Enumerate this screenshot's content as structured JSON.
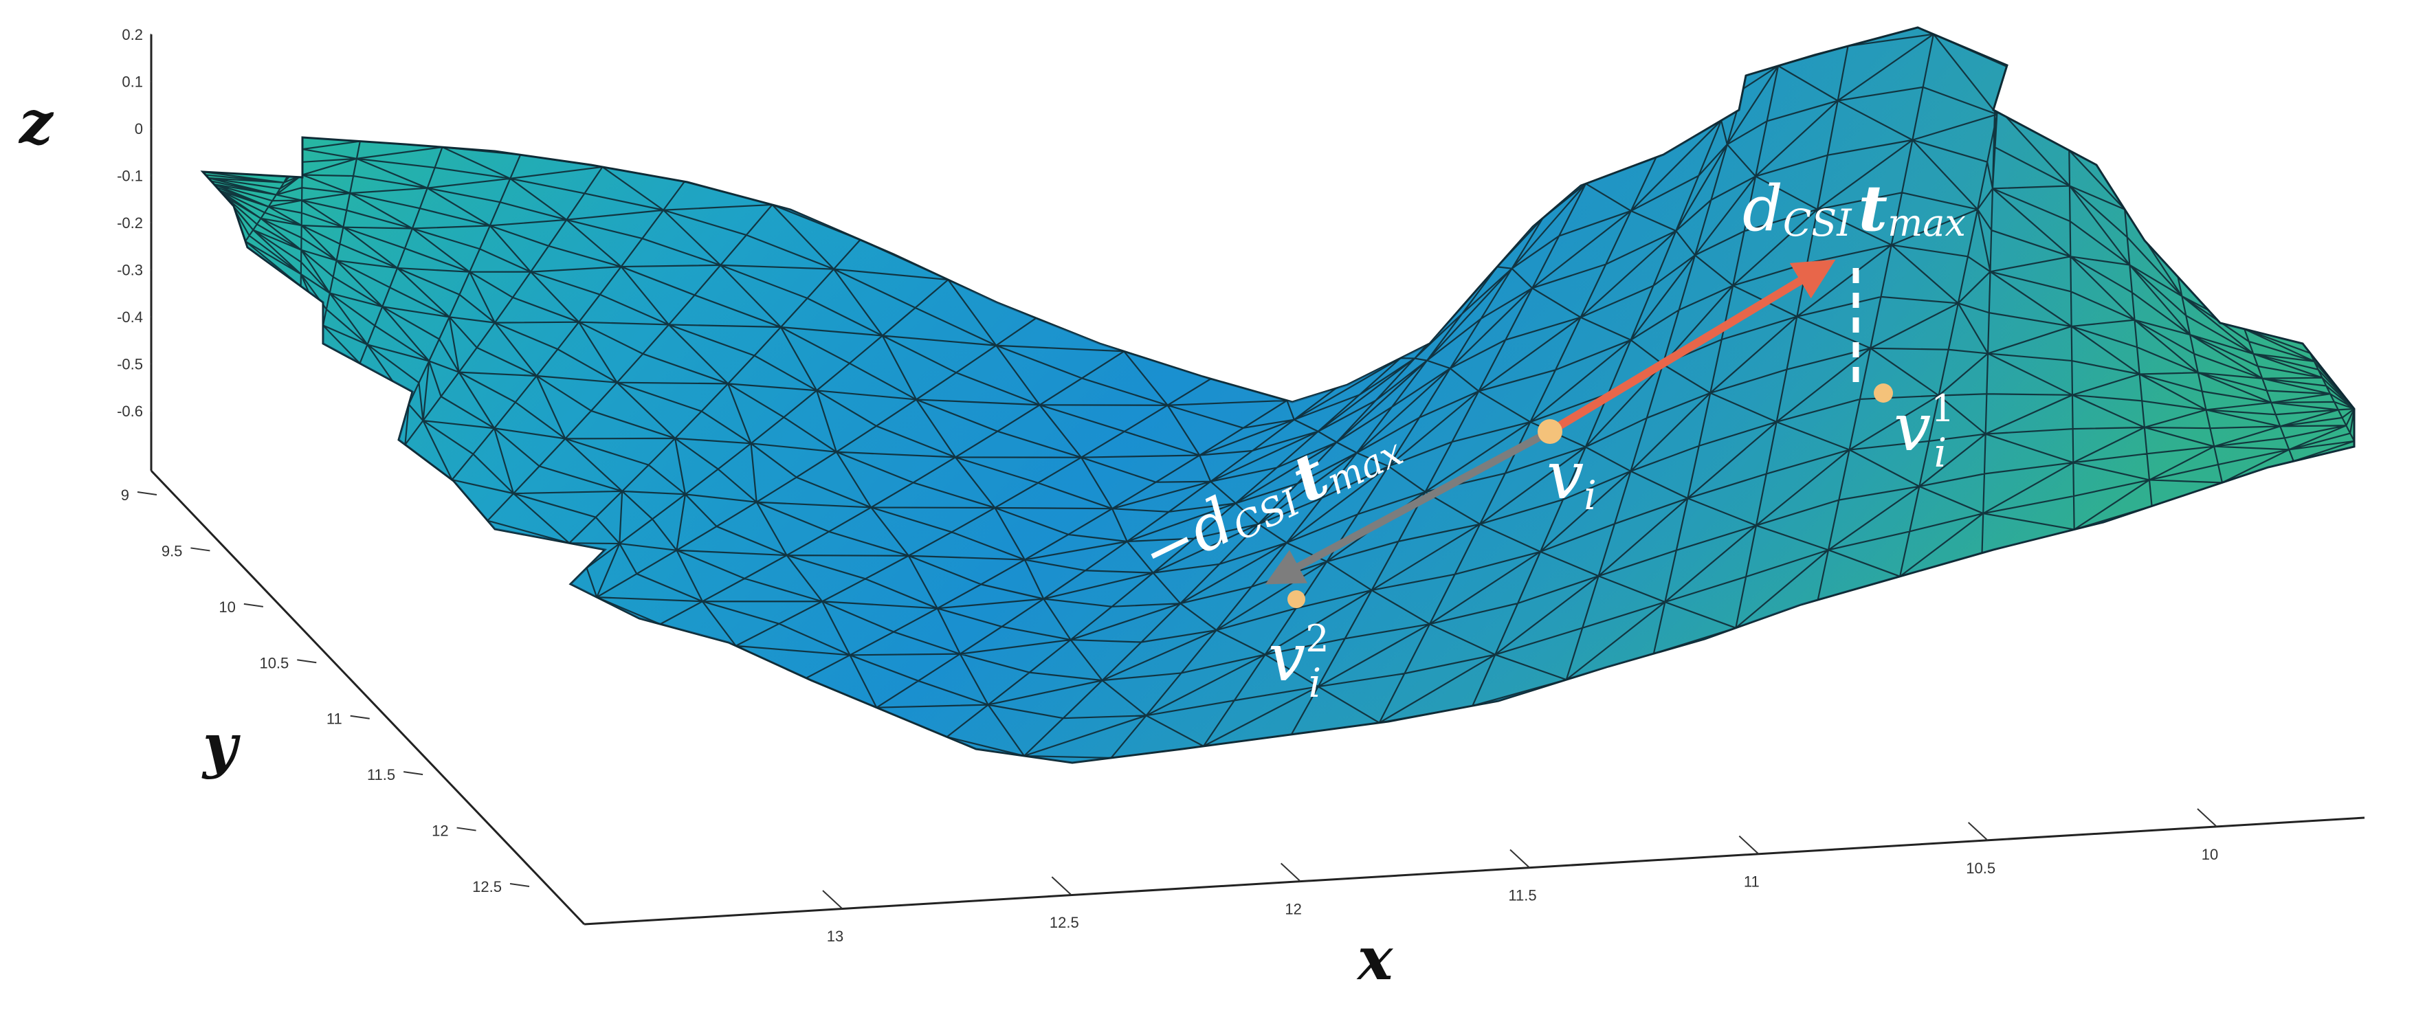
{
  "axes": {
    "z": {
      "label": "z",
      "ticks": [
        "0.2",
        "0.1",
        "0",
        "-0.1",
        "-0.2",
        "-0.3",
        "-0.4",
        "-0.5",
        "-0.6"
      ]
    },
    "y": {
      "label": "y",
      "ticks": [
        "9",
        "9.5",
        "10",
        "10.5",
        "11",
        "11.5",
        "12",
        "12.5"
      ]
    },
    "x": {
      "label": "x",
      "ticks": [
        "13",
        "12.5",
        "12",
        "11.5",
        "11",
        "10.5",
        "10"
      ]
    }
  },
  "annotations": {
    "plus": {
      "prefix": "d",
      "sub": "CSI",
      "vec": "t",
      "vecsub": "max"
    },
    "minus": {
      "prefix": "−d",
      "sub": "CSI",
      "vec": "t",
      "vecsub": "max"
    },
    "vi": {
      "base": "v",
      "sub": "i"
    },
    "vi1": {
      "base": "v",
      "sub": "i",
      "sup": "1"
    },
    "vi2": {
      "base": "v",
      "sub": "i",
      "sup": "2"
    }
  },
  "colors": {
    "arrow_plus": "#e8664a",
    "arrow_minus": "#7d7d7d",
    "point": "#f4c27a",
    "dashed": "#ffffff",
    "mesh_center": "#1c93cf",
    "mesh_edge": "#2fb888",
    "mesh_line": "#0f2a34"
  }
}
